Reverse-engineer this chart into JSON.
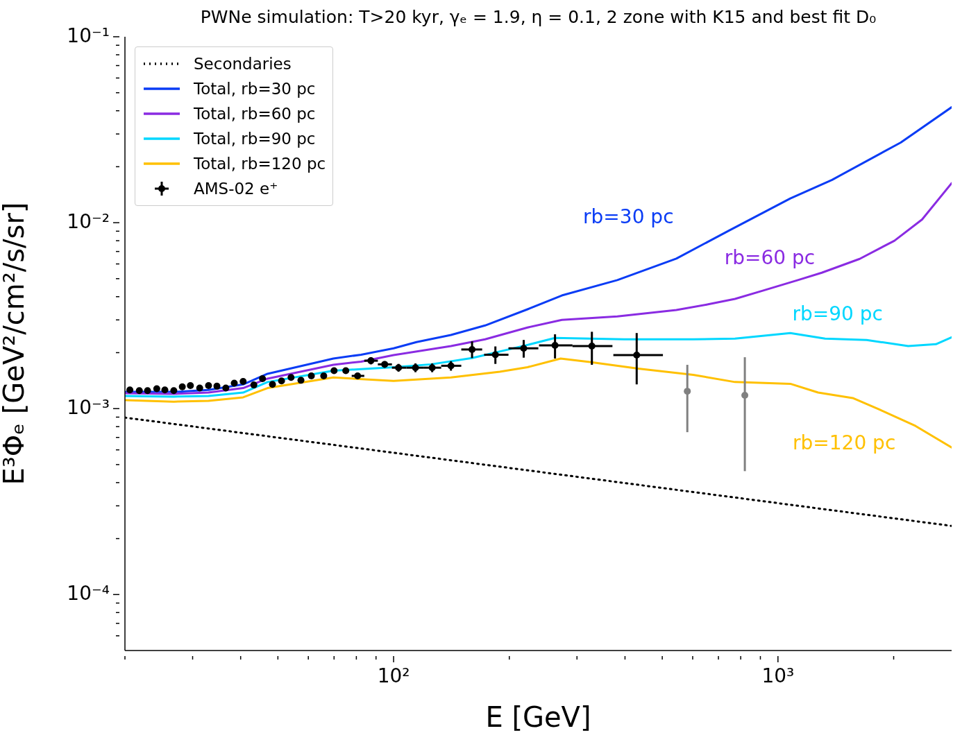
{
  "chart_data": {
    "type": "line",
    "title": "PWNe simulation: T>20 kyr, γₑ = 1.9, η = 0.1, 2 zone with K15 and best fit D₀",
    "xlabel": "E [GeV]",
    "ylabel": "E³Φₑ [GeV²/cm²/s/sr]",
    "log": "xy",
    "legend": "top left",
    "xlim": [
      20,
      2830
    ],
    "ylim": [
      5e-05,
      0.1
    ],
    "xticks": [
      {
        "value": 20,
        "label": null
      },
      {
        "value": 30,
        "label": null
      },
      {
        "value": 40,
        "label": null
      },
      {
        "value": 50,
        "label": null
      },
      {
        "value": 60,
        "label": null
      },
      {
        "value": 70,
        "label": null
      },
      {
        "value": 80,
        "label": null
      },
      {
        "value": 90,
        "label": null
      },
      {
        "value": 100,
        "label": "10²"
      },
      {
        "value": 200,
        "label": null
      },
      {
        "value": 300,
        "label": null
      },
      {
        "value": 400,
        "label": null
      },
      {
        "value": 500,
        "label": null
      },
      {
        "value": 600,
        "label": null
      },
      {
        "value": 700,
        "label": null
      },
      {
        "value": 800,
        "label": null
      },
      {
        "value": 900,
        "label": null
      },
      {
        "value": 1000,
        "label": "10³"
      },
      {
        "value": 2000,
        "label": null
      }
    ],
    "yticks": [
      {
        "value": 6e-05,
        "label": null
      },
      {
        "value": 7e-05,
        "label": null
      },
      {
        "value": 8e-05,
        "label": null
      },
      {
        "value": 9e-05,
        "label": null
      },
      {
        "value": 0.0001,
        "label": "10⁻⁴"
      },
      {
        "value": 0.0002,
        "label": null
      },
      {
        "value": 0.0003,
        "label": null
      },
      {
        "value": 0.0004,
        "label": null
      },
      {
        "value": 0.0005,
        "label": null
      },
      {
        "value": 0.0006,
        "label": null
      },
      {
        "value": 0.0007,
        "label": null
      },
      {
        "value": 0.0008,
        "label": null
      },
      {
        "value": 0.0009,
        "label": null
      },
      {
        "value": 0.001,
        "label": "10⁻³"
      },
      {
        "value": 0.002,
        "label": null
      },
      {
        "value": 0.003,
        "label": null
      },
      {
        "value": 0.004,
        "label": null
      },
      {
        "value": 0.005,
        "label": null
      },
      {
        "value": 0.006,
        "label": null
      },
      {
        "value": 0.007,
        "label": null
      },
      {
        "value": 0.008,
        "label": null
      },
      {
        "value": 0.009,
        "label": null
      },
      {
        "value": 0.01,
        "label": "10⁻²"
      },
      {
        "value": 0.02,
        "label": null
      },
      {
        "value": 0.03,
        "label": null
      },
      {
        "value": 0.04,
        "label": null
      },
      {
        "value": 0.05,
        "label": null
      },
      {
        "value": 0.06,
        "label": null
      },
      {
        "value": 0.07,
        "label": null
      },
      {
        "value": 0.08,
        "label": null
      },
      {
        "value": 0.09,
        "label": null
      },
      {
        "value": 0.1,
        "label": "10⁻¹"
      }
    ],
    "grid": false,
    "series": [
      {
        "name": "Secondaries",
        "color": "#000000",
        "line_style": "dotted",
        "x": [
          20,
          100,
          2830
        ],
        "values": [
          0.000895,
          0.000579,
          0.000234
        ]
      },
      {
        "name": "Total, rb=30 pc",
        "color": "#0a3cf5",
        "x": [
          20.1,
          26.8,
          33,
          40.6,
          47,
          69.7,
          82.3,
          100,
          114.7,
          141,
          173,
          223,
          274,
          382,
          544,
          742,
          1077,
          1383,
          2087,
          2830
        ],
        "values": [
          0.00123,
          0.00123,
          0.00126,
          0.00135,
          0.00154,
          0.00186,
          0.00195,
          0.00211,
          0.00228,
          0.00249,
          0.0028,
          0.00342,
          0.00406,
          0.00491,
          0.00641,
          0.00902,
          0.0135,
          0.017,
          0.027,
          0.0418
        ]
      },
      {
        "name": "Total, rb=60 pc",
        "color": "#8a2be2",
        "x": [
          20.1,
          26.8,
          33,
          40.6,
          47,
          69.7,
          82.3,
          100,
          141,
          173,
          223,
          274,
          382,
          544,
          655,
          773,
          913,
          1123,
          1300,
          1632,
          2009,
          2371,
          2830
        ],
        "values": [
          0.00121,
          0.0012,
          0.00122,
          0.00129,
          0.00145,
          0.00172,
          0.00179,
          0.00194,
          0.00217,
          0.00236,
          0.00273,
          0.003,
          0.00313,
          0.00339,
          0.00363,
          0.00389,
          0.00431,
          0.0049,
          0.00538,
          0.00639,
          0.008,
          0.0104,
          0.0163
        ]
      },
      {
        "name": "Total, rb=90 pc",
        "color": "#00d7ff",
        "x": [
          20.1,
          26.8,
          33,
          40.6,
          47,
          69.7,
          82.3,
          100,
          125,
          160,
          223,
          263,
          324,
          398,
          602,
          773,
          1077,
          1326,
          1701,
          2182,
          2576,
          2830
        ],
        "values": [
          0.00117,
          0.00116,
          0.00117,
          0.00122,
          0.00139,
          0.0016,
          0.00163,
          0.00167,
          0.00173,
          0.00187,
          0.0022,
          0.0024,
          0.00238,
          0.00236,
          0.00236,
          0.00238,
          0.00255,
          0.00238,
          0.00234,
          0.00217,
          0.00222,
          0.00242
        ]
      },
      {
        "name": "Total, rb=120 pc",
        "color": "#ffc000",
        "x": [
          20.1,
          26.8,
          33,
          40.6,
          47,
          69.7,
          100,
          141,
          189,
          223,
          272,
          324,
          433,
          602,
          773,
          1077,
          1272,
          1565,
          1848,
          2280,
          2830
        ],
        "values": [
          0.00111,
          0.00109,
          0.0011,
          0.00115,
          0.00129,
          0.00147,
          0.00141,
          0.00147,
          0.00158,
          0.00167,
          0.00186,
          0.00178,
          0.00164,
          0.00152,
          0.00139,
          0.00136,
          0.00122,
          0.00114,
          0.000983,
          0.000807,
          0.000618
        ]
      },
      {
        "name": "AMS-02 e⁺",
        "type": "scatter",
        "color": "#000000",
        "marker": "circle",
        "x": [
          20.6,
          21.8,
          22.9,
          24.2,
          25.4,
          26.8,
          28.2,
          29.6,
          31.3,
          33,
          34.7,
          36.6,
          38.5,
          40.6,
          43.3,
          45.6,
          48.4,
          51.1,
          54.1,
          57.4,
          61.1,
          65.8,
          70,
          75.1,
          80.6,
          87.3,
          94.8,
          103,
          114,
          126,
          141,
          160,
          184,
          218,
          263,
          328,
          429
        ],
        "values": [
          0.00126,
          0.00125,
          0.00125,
          0.00128,
          0.00126,
          0.00125,
          0.00131,
          0.00133,
          0.00129,
          0.00133,
          0.00132,
          0.00129,
          0.00137,
          0.0014,
          0.00134,
          0.00145,
          0.00135,
          0.00141,
          0.00147,
          0.00142,
          0.0015,
          0.0015,
          0.0016,
          0.0016,
          0.0015,
          0.00181,
          0.00173,
          0.00166,
          0.00166,
          0.00166,
          0.0017,
          0.00208,
          0.00195,
          0.00211,
          0.00219,
          0.00217,
          0.00194
        ],
        "errors": [
          null,
          null,
          null,
          null,
          null,
          null,
          null,
          null,
          null,
          null,
          null,
          null,
          null,
          null,
          null,
          null,
          null,
          null,
          null,
          null,
          null,
          null,
          null,
          null,
          null,
          [
            0.00173,
            0.00189
          ],
          [
            0.00166,
            0.0018
          ],
          [
            0.00158,
            0.00174
          ],
          [
            0.00157,
            0.00175
          ],
          [
            0.00157,
            0.00175
          ],
          [
            0.0016,
            0.0018
          ],
          [
            0.00187,
            0.0023
          ],
          [
            0.00174,
            0.00216
          ],
          [
            0.00188,
            0.00234
          ],
          [
            0.00186,
            0.00251
          ],
          [
            0.00172,
            0.00259
          ],
          [
            0.00135,
            0.00255
          ]
        ],
        "xerrors": [
          null,
          null,
          null,
          null,
          null,
          null,
          null,
          null,
          null,
          null,
          null,
          null,
          null,
          null,
          null,
          null,
          null,
          null,
          null,
          null,
          null,
          null,
          null,
          null,
          [
            77.8,
            83.9
          ],
          [
            83.9,
            91
          ],
          [
            91,
            99
          ],
          [
            99,
            108
          ],
          [
            108,
            120
          ],
          [
            120,
            133
          ],
          [
            133,
            150
          ],
          [
            150,
            170
          ],
          [
            172,
            199
          ],
          [
            199,
            238
          ],
          [
            239,
            292
          ],
          [
            292,
            371
          ],
          [
            373,
            502
          ]
        ]
      },
      {
        "type": "scatter",
        "color": "#808080",
        "marker": "circle",
        "x": [
          581,
          820
        ],
        "values": [
          0.00124,
          0.00118
        ],
        "errors": [
          [
            0.000747,
            0.00172
          ],
          [
            0.000461,
            0.00189
          ]
        ]
      }
    ],
    "annotations": [
      "rb=30 pc",
      "rb=60 pc",
      "rb=90 pc",
      "rb=120 pc"
    ]
  }
}
